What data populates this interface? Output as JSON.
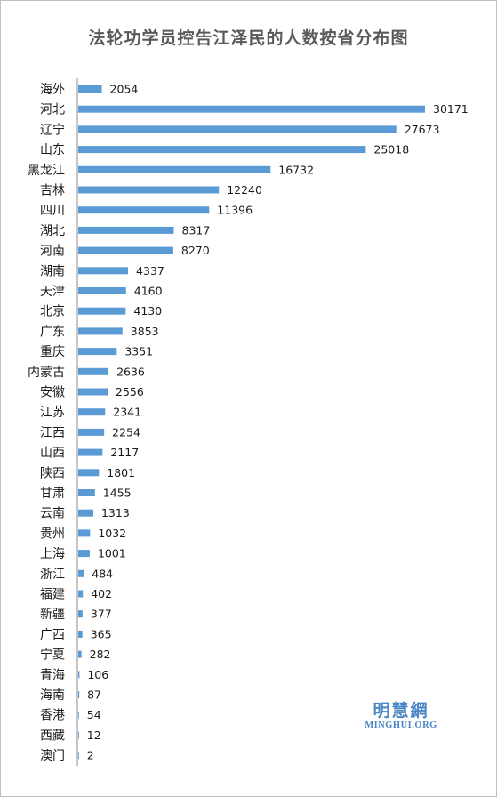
{
  "chart_data": {
    "type": "bar",
    "orientation": "horizontal",
    "title": "法轮功学员控告江泽民的人数按省分布图",
    "categories": [
      "海外",
      "河北",
      "辽宁",
      "山东",
      "黑龙江",
      "吉林",
      "四川",
      "湖北",
      "河南",
      "湖南",
      "天津",
      "北京",
      "广东",
      "重庆",
      "内蒙古",
      "安徽",
      "江苏",
      "江西",
      "山西",
      "陕西",
      "甘肃",
      "云南",
      "贵州",
      "上海",
      "浙江",
      "福建",
      "新疆",
      "广西",
      "宁夏",
      "青海",
      "海南",
      "香港",
      "西藏",
      "澳门"
    ],
    "values": [
      2054,
      30171,
      27673,
      25018,
      16732,
      12240,
      11396,
      8317,
      8270,
      4337,
      4160,
      4130,
      3853,
      3351,
      2636,
      2556,
      2341,
      2254,
      2117,
      1801,
      1455,
      1313,
      1032,
      1001,
      484,
      402,
      377,
      365,
      282,
      106,
      87,
      54,
      12,
      2
    ],
    "xlim": [
      0,
      30171
    ],
    "bar_color": "#5b9bd5",
    "grid": false,
    "legend": "none"
  },
  "watermark": {
    "chinese": "明慧網",
    "english": "MINGHUI.ORG",
    "color": "#4a86c5"
  }
}
